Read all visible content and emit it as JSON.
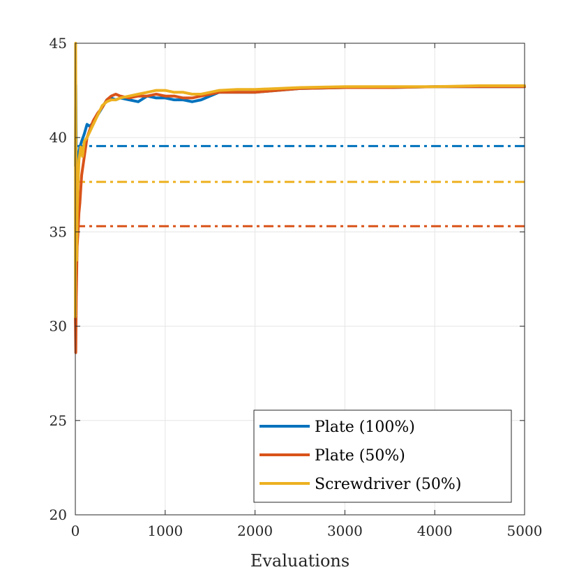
{
  "chart_data": {
    "type": "line",
    "title": "",
    "xlabel": "Evaluations",
    "ylabel": "",
    "xlim": [
      0,
      5000
    ],
    "ylim": [
      20,
      45
    ],
    "xticks": [
      0,
      1000,
      2000,
      3000,
      4000,
      5000
    ],
    "yticks": [
      20,
      25,
      30,
      35,
      40,
      45
    ],
    "xtick_labels": [
      "0",
      "1000",
      "2000",
      "3000",
      "4000",
      "5000"
    ],
    "ytick_labels": [
      "20",
      "25",
      "30",
      "35",
      "40",
      "45"
    ],
    "grid": true,
    "legend_position": "bottom-right",
    "series": [
      {
        "name": "Plate (100%)",
        "color": "#0072BD",
        "style": "solid",
        "x": [
          0,
          5,
          10,
          20,
          30,
          50,
          70,
          100,
          130,
          160,
          200,
          250,
          300,
          350,
          400,
          450,
          500,
          600,
          700,
          800,
          900,
          1000,
          1100,
          1200,
          1300,
          1400,
          1500,
          1600,
          1800,
          2000,
          2500,
          3000,
          3500,
          4000,
          4500,
          5000
        ],
        "y": [
          38.5,
          42.8,
          39.5,
          38.2,
          38.8,
          39.5,
          39.8,
          40.2,
          40.7,
          40.6,
          40.8,
          41.2,
          41.6,
          42.0,
          42.1,
          42.0,
          42.1,
          42.0,
          41.9,
          42.2,
          42.1,
          42.1,
          42.0,
          42.0,
          41.9,
          42.0,
          42.2,
          42.4,
          42.4,
          42.4,
          42.6,
          42.65,
          42.65,
          42.7,
          42.7,
          42.7
        ]
      },
      {
        "name": "Plate (50%)",
        "color": "#D95319",
        "style": "solid",
        "x": [
          0,
          5,
          10,
          20,
          30,
          40,
          50,
          70,
          100,
          130,
          160,
          200,
          250,
          300,
          350,
          400,
          450,
          500,
          600,
          700,
          800,
          900,
          1000,
          1100,
          1200,
          1300,
          1400,
          1500,
          1600,
          1800,
          2000,
          2500,
          3000,
          3500,
          4000,
          4500,
          5000
        ],
        "y": [
          30.5,
          28.6,
          31.5,
          34.2,
          35.0,
          36.0,
          36.5,
          38.0,
          39.0,
          40.0,
          40.4,
          40.9,
          41.3,
          41.6,
          42.0,
          42.2,
          42.3,
          42.2,
          42.1,
          42.2,
          42.2,
          42.3,
          42.2,
          42.2,
          42.1,
          42.1,
          42.2,
          42.3,
          42.4,
          42.4,
          42.4,
          42.6,
          42.65,
          42.65,
          42.7,
          42.7,
          42.7
        ]
      },
      {
        "name": "Screwdriver (50%)",
        "color": "#EDB120",
        "style": "solid",
        "x": [
          0,
          3,
          6,
          10,
          15,
          20,
          30,
          40,
          60,
          80,
          100,
          130,
          160,
          200,
          250,
          300,
          350,
          400,
          450,
          500,
          600,
          700,
          800,
          900,
          1000,
          1100,
          1200,
          1300,
          1400,
          1500,
          1600,
          1800,
          2000,
          2500,
          3000,
          3500,
          4000,
          4500,
          5000
        ],
        "y": [
          30.5,
          45.0,
          40.0,
          35.0,
          33.5,
          36.0,
          37.5,
          38.8,
          39.5,
          39.0,
          39.8,
          40.0,
          40.3,
          40.7,
          41.2,
          41.7,
          41.9,
          42.0,
          42.0,
          42.1,
          42.2,
          42.3,
          42.4,
          42.5,
          42.5,
          42.4,
          42.4,
          42.3,
          42.3,
          42.4,
          42.5,
          42.55,
          42.55,
          42.65,
          42.7,
          42.7,
          42.7,
          42.75,
          42.75
        ]
      },
      {
        "name": "Plate (100%) reference",
        "color": "#0072BD",
        "style": "dashdot",
        "x": [
          0,
          5000
        ],
        "y": [
          39.55,
          39.55
        ]
      },
      {
        "name": "Screwdriver (50%) reference",
        "color": "#EDB120",
        "style": "dashdot",
        "x": [
          0,
          5000
        ],
        "y": [
          37.65,
          37.65
        ]
      },
      {
        "name": "Plate (50%) reference",
        "color": "#D95319",
        "style": "dashdot",
        "x": [
          0,
          5000
        ],
        "y": [
          35.3,
          35.3
        ]
      }
    ],
    "legend_entries": [
      "Plate (100%)",
      "Plate (50%)",
      "Screwdriver (50%)"
    ]
  }
}
